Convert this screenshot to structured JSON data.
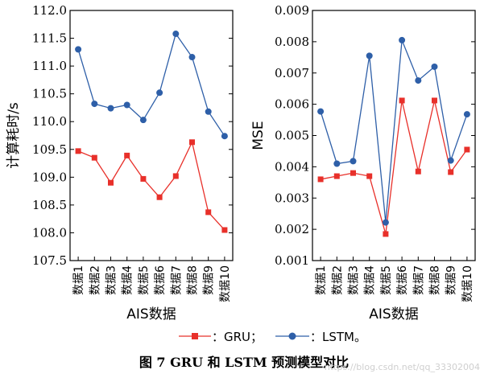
{
  "chart_data": [
    {
      "type": "line",
      "ylabel": "计算耗时/s",
      "xlabel": "AIS数据",
      "ylim": [
        107.5,
        112.0
      ],
      "yticks": [
        "107.5",
        "108.0",
        "108.5",
        "109.0",
        "109.5",
        "110.0",
        "110.5",
        "111.0",
        "111.5",
        "112.0"
      ],
      "categories": [
        "数据1",
        "数据2",
        "数据3",
        "数据4",
        "数据5",
        "数据6",
        "数据7",
        "数据8",
        "数据9",
        "数据10"
      ],
      "grid": false,
      "series": [
        {
          "key": "gru",
          "name": "GRU",
          "color": "#e8302a",
          "marker": "square",
          "values": [
            109.47,
            109.35,
            108.9,
            109.39,
            108.97,
            108.64,
            109.02,
            109.63,
            108.37,
            108.05
          ]
        },
        {
          "key": "lstm",
          "name": "LSTM",
          "color": "#2e5fa8",
          "marker": "circle",
          "values": [
            111.3,
            110.32,
            110.24,
            110.3,
            110.03,
            110.52,
            111.58,
            111.16,
            110.18,
            109.74
          ]
        }
      ]
    },
    {
      "type": "line",
      "ylabel": "MSE",
      "xlabel": "AIS数据",
      "ylim": [
        0.001,
        0.009
      ],
      "yticks": [
        "0.001",
        "0.002",
        "0.003",
        "0.004",
        "0.005",
        "0.006",
        "0.007",
        "0.008",
        "0.009"
      ],
      "categories": [
        "数据1",
        "数据2",
        "数据3",
        "数据4",
        "数据5",
        "数据6",
        "数据7",
        "数据8",
        "数据9",
        "数据10"
      ],
      "grid": false,
      "series": [
        {
          "key": "gru",
          "name": "GRU",
          "color": "#e8302a",
          "marker": "square",
          "values": [
            0.0036,
            0.0037,
            0.0038,
            0.0037,
            0.00185,
            0.00612,
            0.00385,
            0.00612,
            0.00383,
            0.00455
          ]
        },
        {
          "key": "lstm",
          "name": "LSTM",
          "color": "#2e5fa8",
          "marker": "circle",
          "values": [
            0.00577,
            0.0041,
            0.00418,
            0.00755,
            0.00222,
            0.00805,
            0.00676,
            0.0072,
            0.0042,
            0.00568
          ]
        }
      ]
    }
  ],
  "legend": {
    "gru_text": "：GRU；",
    "lstm_text": "：LSTM。"
  },
  "caption": "图 7   GRU 和 LSTM 预测模型对比",
  "watermark": "https://blog.csdn.net/qq_33302004"
}
